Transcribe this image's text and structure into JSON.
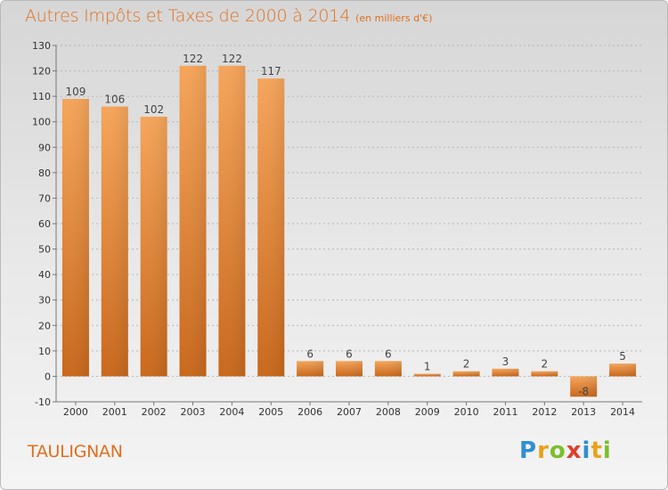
{
  "chart_data": {
    "type": "bar",
    "title": "Autres Impôts et Taxes de 2000 à 2014",
    "unit": "(en milliers d'€)",
    "categories": [
      "2000",
      "2001",
      "2002",
      "2003",
      "2004",
      "2005",
      "2006",
      "2007",
      "2008",
      "2009",
      "2010",
      "2011",
      "2012",
      "2013",
      "2014"
    ],
    "values": [
      109,
      106,
      102,
      122,
      122,
      117,
      6,
      6,
      6,
      1,
      2,
      3,
      2,
      -8,
      5
    ],
    "ylim": [
      -10,
      130
    ],
    "yticks": [
      -10,
      0,
      10,
      20,
      30,
      40,
      50,
      60,
      70,
      80,
      90,
      100,
      110,
      120,
      130
    ],
    "grid": true,
    "bar_color": "#e07d25"
  },
  "place": "TAULIGNAN",
  "logo": [
    "P",
    "r",
    "o",
    "x",
    "i",
    "t",
    "i"
  ]
}
